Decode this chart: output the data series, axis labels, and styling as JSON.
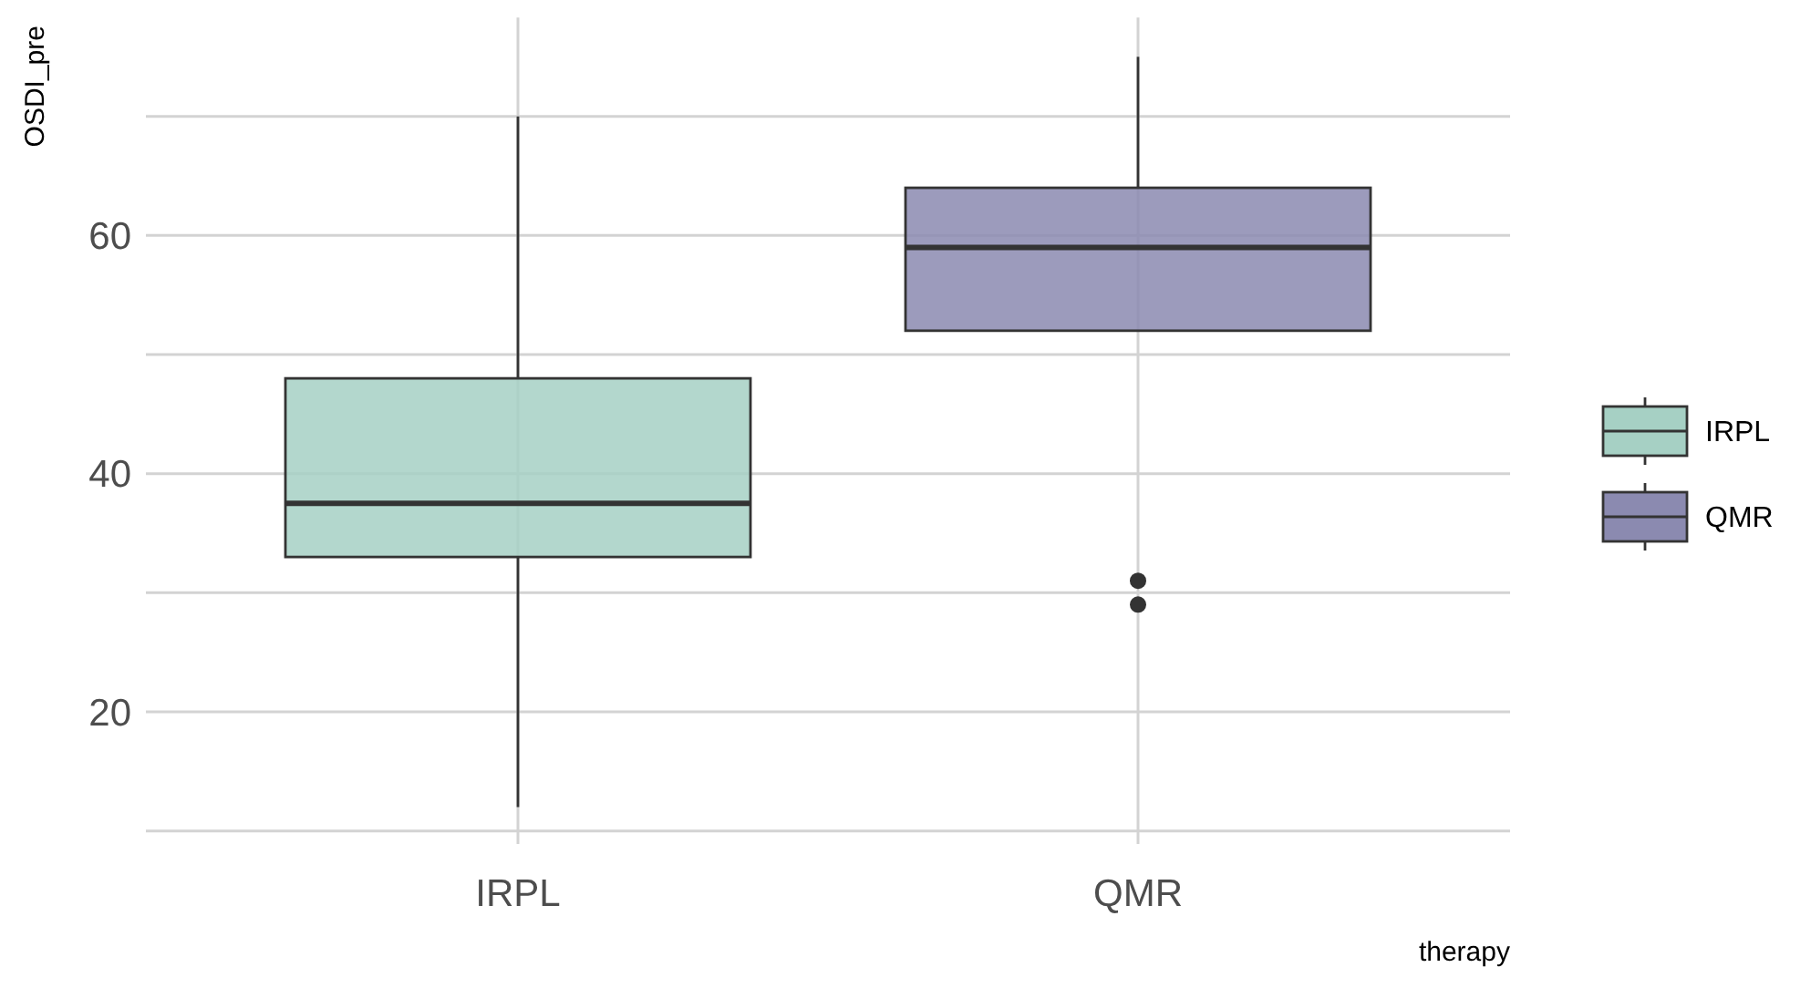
{
  "chart_data": {
    "type": "box",
    "ylabel": "OSDI_pre",
    "xlabel": "therapy",
    "categories": [
      "IRPL",
      "QMR"
    ],
    "series": [
      {
        "name": "IRPL",
        "color": "#a6d0c4",
        "boxes": [
          {
            "low": 12,
            "q1": 33,
            "median": 37.5,
            "q3": 48,
            "high": 70
          },
          null
        ]
      },
      {
        "name": "QMR",
        "color": "#8b8ab0",
        "boxes": [
          null,
          {
            "low": 52,
            "q1": 52,
            "median": 59,
            "q3": 64,
            "high": 75,
            "outliers": [
              31,
              29
            ]
          }
        ]
      }
    ],
    "ylim": [
      8.9,
      78.3
    ],
    "yticks": [
      {
        "value": 10,
        "label": null
      },
      20,
      {
        "value": 30,
        "label": null
      },
      40,
      {
        "value": 50,
        "label": null
      },
      60,
      {
        "value": 70,
        "label": null
      }
    ],
    "grid": true,
    "legend": "right"
  }
}
